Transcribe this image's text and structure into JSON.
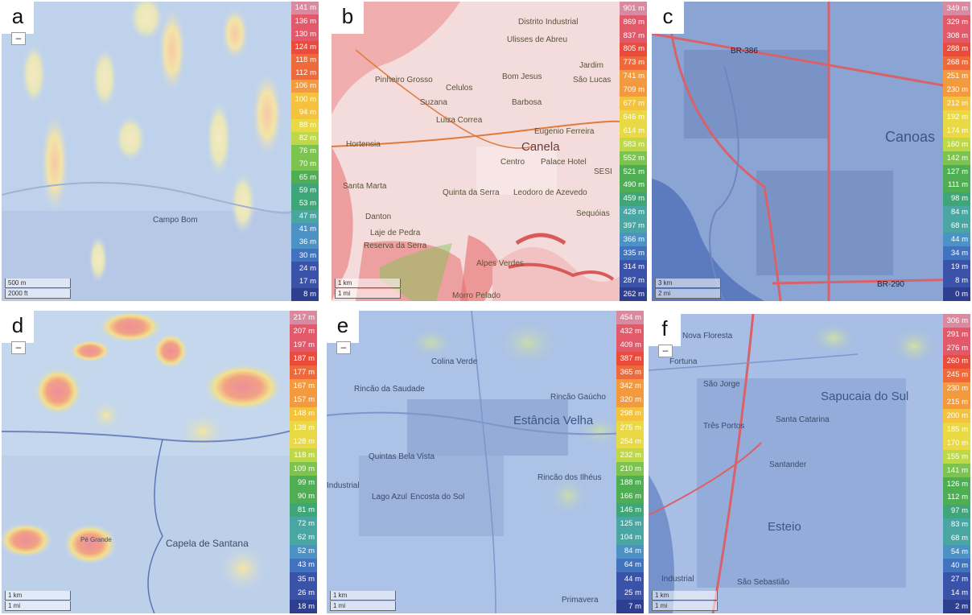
{
  "panels": [
    {
      "letter": "a",
      "legend": [
        "141 m",
        "136 m",
        "130 m",
        "124 m",
        "118 m",
        "112 m",
        "106 m",
        "100 m",
        "94 m",
        "88 m",
        "82 m",
        "76 m",
        "70 m",
        "65 m",
        "59 m",
        "53 m",
        "47 m",
        "41 m",
        "36 m",
        "30 m",
        "24 m",
        "17 m",
        "8 m"
      ],
      "scale_km": "500 m",
      "scale_mi": "2000 ft",
      "places": [
        "Campo Bom"
      ]
    },
    {
      "letter": "b",
      "legend": [
        "901 m",
        "869 m",
        "837 m",
        "805 m",
        "773 m",
        "741 m",
        "709 m",
        "677 m",
        "646 m",
        "614 m",
        "583 m",
        "552 m",
        "521 m",
        "490 m",
        "459 m",
        "428 m",
        "397 m",
        "366 m",
        "335 m",
        "314 m",
        "287 m",
        "262 m"
      ],
      "scale_km": "1 km",
      "scale_mi": "1 mi",
      "places": [
        "Distrito Industrial",
        "Ulisses de Abreu",
        "Jardim",
        "São Lucas",
        "Pinheiro Grosso",
        "Celulos",
        "Bom Jesus",
        "Suzana",
        "Barbosa",
        "Luiza Correa",
        "Eugenio Ferreira",
        "Canela",
        "Hortensia",
        "Centro",
        "Palace Hotel",
        "SESI",
        "Santa Marta",
        "Quinta da Serra",
        "Leodoro de Azevedo",
        "Danton",
        "Sequóias",
        "Laje de Pedra",
        "Reserva da Serra",
        "Alpes Verdes",
        "Morro Pelado"
      ]
    },
    {
      "letter": "c",
      "legend": [
        "349 m",
        "329 m",
        "308 m",
        "288 m",
        "268 m",
        "251 m",
        "230 m",
        "212 m",
        "192 m",
        "174 m",
        "160 m",
        "142 m",
        "127 m",
        "111 m",
        "98 m",
        "84 m",
        "68 m",
        "44 m",
        "34 m",
        "19 m",
        "8 m",
        "0 m"
      ],
      "scale_km": "3 km",
      "scale_mi": "2 mi",
      "places": [
        "BR-386",
        "Canoas",
        "BR-290"
      ]
    },
    {
      "letter": "d",
      "legend": [
        "217 m",
        "207 m",
        "197 m",
        "187 m",
        "177 m",
        "167 m",
        "157 m",
        "148 m",
        "138 m",
        "128 m",
        "118 m",
        "109 m",
        "99 m",
        "90 m",
        "81 m",
        "72 m",
        "62 m",
        "52 m",
        "43 m",
        "35 m",
        "26 m",
        "18 m"
      ],
      "scale_km": "1 km",
      "scale_mi": "1 mi",
      "places": [
        "Capela de Santana",
        "Pé Grande"
      ]
    },
    {
      "letter": "e",
      "legend": [
        "454 m",
        "432 m",
        "409 m",
        "387 m",
        "365 m",
        "342 m",
        "320 m",
        "298 m",
        "275 m",
        "254 m",
        "232 m",
        "210 m",
        "188 m",
        "166 m",
        "146 m",
        "125 m",
        "104 m",
        "84 m",
        "64 m",
        "44 m",
        "25 m",
        "7 m"
      ],
      "scale_km": "1 km",
      "scale_mi": "1 mi",
      "places": [
        "Colina Verde",
        "Rincão da Saudade",
        "Rincão Gaúcho",
        "Estância Velha",
        "Quintas Bela Vista",
        "Lago Azul",
        "Encosta do Sol",
        "Rincão dos Ilhéus",
        "Industrial",
        "Primavera"
      ]
    },
    {
      "letter": "f",
      "legend": [
        "306 m",
        "291 m",
        "276 m",
        "260 m",
        "245 m",
        "230 m",
        "215 m",
        "200 m",
        "185 m",
        "170 m",
        "155 m",
        "141 m",
        "126 m",
        "112 m",
        "97 m",
        "83 m",
        "68 m",
        "54 m",
        "40 m",
        "27 m",
        "14 m",
        "2 m"
      ],
      "scale_km": "1 km",
      "scale_mi": "1 mi",
      "places": [
        "Nova Floresta",
        "Fortuna",
        "São Jorge",
        "Sapucaia do Sul",
        "Santa Catarina",
        "Três Portos",
        "Santander",
        "Esteio",
        "Industrial",
        "São Sebastião"
      ]
    }
  ],
  "legend_colors": [
    "#d98aa0",
    "#e25a6a",
    "#ec4a3a",
    "#ef6a3a",
    "#f39a3f",
    "#f5c23e",
    "#e9d944",
    "#bfd84a",
    "#7cc44f",
    "#4fae54",
    "#3fa67a",
    "#49a6a2",
    "#4c92c4",
    "#4273bf",
    "#3a52a8",
    "#2f3f8f"
  ],
  "colors": {
    "low_blue": "#c3d4ec",
    "mid_yellow": "#f3e6a0",
    "high_red": "#ef8a8a"
  }
}
